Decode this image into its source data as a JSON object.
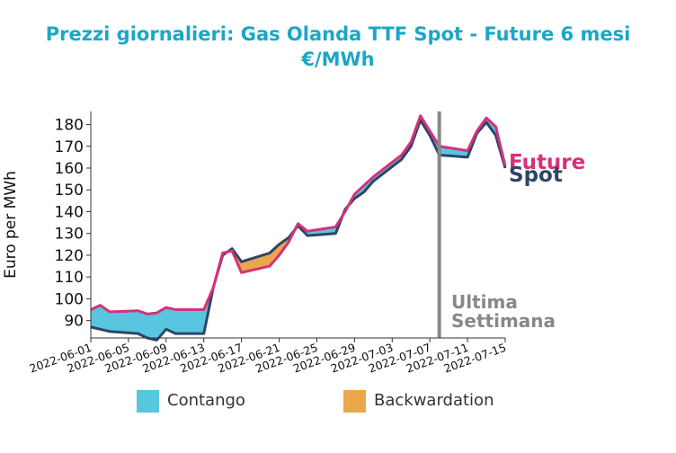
{
  "chart_data": {
    "type": "area",
    "title": "Prezzi giornalieri: Gas Olanda TTF Spot - Future 6 mesi",
    "subtitle": "€/MWh",
    "ylabel": "Euro per MWh",
    "ylim": [
      82,
      186
    ],
    "yticks": [
      90,
      100,
      110,
      120,
      130,
      140,
      150,
      160,
      170,
      180
    ],
    "xlim": [
      "2022-06-01",
      "2022-07-15"
    ],
    "xticks": [
      "2022-06-01",
      "2022-06-05",
      "2022-06-09",
      "2022-06-13",
      "2022-06-17",
      "2022-06-21",
      "2022-06-25",
      "2022-06-29",
      "2022-07-03",
      "2022-07-07",
      "2022-07-11",
      "2022-07-15"
    ],
    "x": [
      "2022-06-01",
      "2022-06-02",
      "2022-06-03",
      "2022-06-06",
      "2022-06-07",
      "2022-06-08",
      "2022-06-09",
      "2022-06-10",
      "2022-06-13",
      "2022-06-14",
      "2022-06-15",
      "2022-06-16",
      "2022-06-17",
      "2022-06-20",
      "2022-06-21",
      "2022-06-22",
      "2022-06-23",
      "2022-06-24",
      "2022-06-27",
      "2022-06-28",
      "2022-06-29",
      "2022-06-30",
      "2022-07-01",
      "2022-07-04",
      "2022-07-05",
      "2022-07-06",
      "2022-07-07",
      "2022-07-08",
      "2022-07-11",
      "2022-07-12",
      "2022-07-13",
      "2022-07-14",
      "2022-07-15"
    ],
    "series": [
      {
        "name": "Future",
        "color": "#d6317a",
        "values": [
          95,
          97,
          94,
          94.5,
          93,
          93.5,
          96,
          95,
          95,
          105,
          121,
          122,
          112,
          115,
          120,
          126,
          134.5,
          131,
          133,
          140,
          148,
          152,
          156,
          166,
          172,
          184,
          177,
          170,
          168,
          177,
          183,
          179,
          161
        ]
      },
      {
        "name": "Spot",
        "color": "#2d4568",
        "values": [
          87,
          86,
          85,
          84,
          82,
          81,
          86,
          84,
          84,
          105,
          120,
          123,
          117,
          121,
          125,
          128,
          133.5,
          129,
          130,
          141,
          146,
          149,
          154,
          164,
          170,
          182,
          175,
          166,
          165,
          176,
          181,
          175,
          160
        ]
      }
    ],
    "fills": [
      {
        "name": "Contango",
        "color": "#58c6de"
      },
      {
        "name": "Backwardation",
        "color": "#eba84a"
      }
    ],
    "vline": {
      "x": "2022-07-08",
      "label_lines": [
        "Ultima",
        "Settimana"
      ],
      "color": "#888888"
    },
    "end_labels": [
      "Future",
      "Spot"
    ],
    "legend_position": "bottom"
  }
}
